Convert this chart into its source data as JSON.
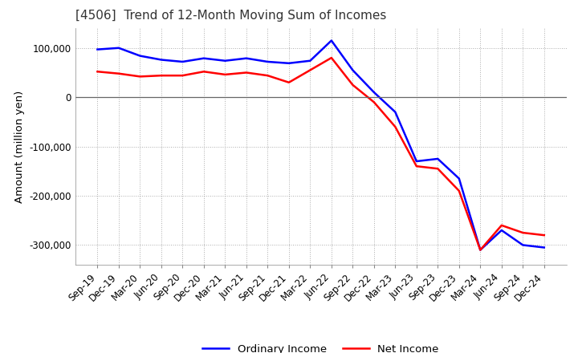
{
  "title": "[4506]  Trend of 12-Month Moving Sum of Incomes",
  "ylabel": "Amount (million yen)",
  "bg_color": "#ffffff",
  "plot_bg_color": "#ffffff",
  "grid_color": "#999999",
  "ordinary_income_color": "#0000ff",
  "net_income_color": "#ff0000",
  "line_width": 1.8,
  "x_labels": [
    "Sep-19",
    "Dec-19",
    "Mar-20",
    "Jun-20",
    "Sep-20",
    "Dec-20",
    "Mar-21",
    "Jun-21",
    "Sep-21",
    "Dec-21",
    "Mar-22",
    "Jun-22",
    "Sep-22",
    "Dec-22",
    "Mar-23",
    "Jun-23",
    "Sep-23",
    "Dec-23",
    "Mar-24",
    "Jun-24",
    "Sep-24",
    "Dec-24"
  ],
  "ordinary_income": [
    97000,
    100000,
    84000,
    76000,
    72000,
    79000,
    74000,
    79000,
    72000,
    69000,
    74000,
    115000,
    55000,
    10000,
    -30000,
    -130000,
    -125000,
    -165000,
    -310000,
    -270000,
    -300000,
    -305000
  ],
  "net_income": [
    52000,
    48000,
    42000,
    44000,
    44000,
    52000,
    46000,
    50000,
    44000,
    30000,
    55000,
    80000,
    25000,
    -10000,
    -60000,
    -140000,
    -145000,
    -190000,
    -310000,
    -260000,
    -275000,
    -280000
  ],
  "ylim": [
    -340000,
    140000
  ],
  "yticks": [
    100000,
    0,
    -100000,
    -200000,
    -300000
  ],
  "legend_labels": [
    "Ordinary Income",
    "Net Income"
  ]
}
